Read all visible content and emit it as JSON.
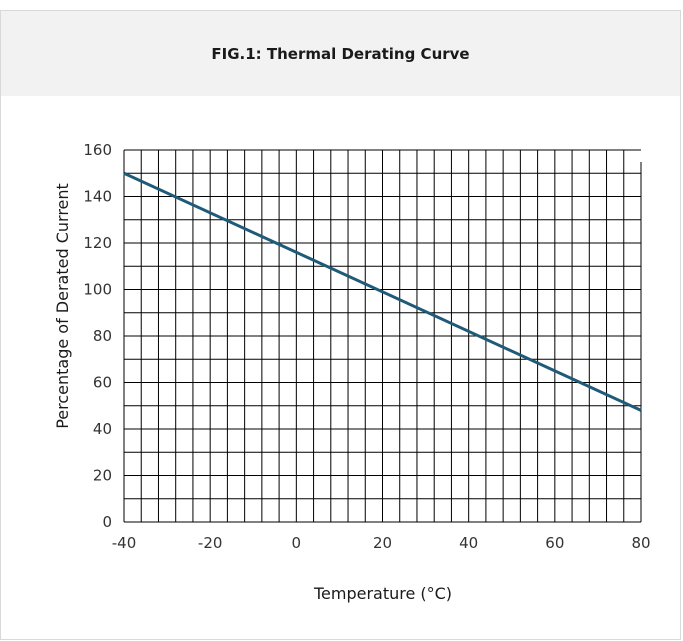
{
  "header": {
    "title": "FIG.1: Thermal Derating Curve"
  },
  "chart_data": {
    "type": "line",
    "title": "FIG.1: Thermal Derating Curve",
    "xlabel": "Temperature (°C)",
    "ylabel": "Percentage of Derated Current",
    "xlim": [
      -40,
      80
    ],
    "ylim": [
      0,
      160
    ],
    "x_ticks": [
      -40,
      -20,
      0,
      20,
      40,
      60,
      80
    ],
    "y_ticks": [
      0,
      20,
      40,
      60,
      80,
      100,
      120,
      140,
      160
    ],
    "grid": true,
    "series": [
      {
        "x": [
          -40,
          80
        ],
        "y": [
          150,
          48
        ]
      }
    ],
    "colors": {
      "line": "#1f5a78",
      "grid": "#000000"
    }
  }
}
